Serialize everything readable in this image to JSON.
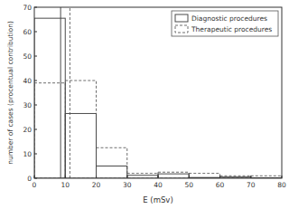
{
  "chart_data": {
    "type": "histogram",
    "x_label": "E (mSv)",
    "y_label": "number of cases (procentual contribution)",
    "bins": [
      0,
      10,
      20,
      30,
      40,
      50,
      60,
      70,
      80
    ],
    "series": [
      {
        "name": "Diagnostic procedures",
        "color": "#4a4a4a",
        "line_style": "solid",
        "values": [
          65.5,
          26.5,
          5,
          1.2,
          1.8,
          0.3,
          0.5,
          0.2
        ],
        "mean": 8.5
      },
      {
        "name": "Therapeutic procedures",
        "color": "#6e6e6e",
        "line_style": "dashed",
        "values": [
          39,
          40,
          12.5,
          2,
          2.5,
          2,
          1,
          1
        ],
        "mean": 11.5
      }
    ],
    "xlim": [
      0,
      80
    ],
    "xticks": [
      0,
      10,
      20,
      30,
      40,
      50,
      60,
      70,
      80
    ],
    "ylim": [
      0,
      70
    ],
    "yticks": [
      0,
      10,
      20,
      30,
      40,
      50,
      60,
      70
    ],
    "legend": "upper right",
    "grid": false
  }
}
